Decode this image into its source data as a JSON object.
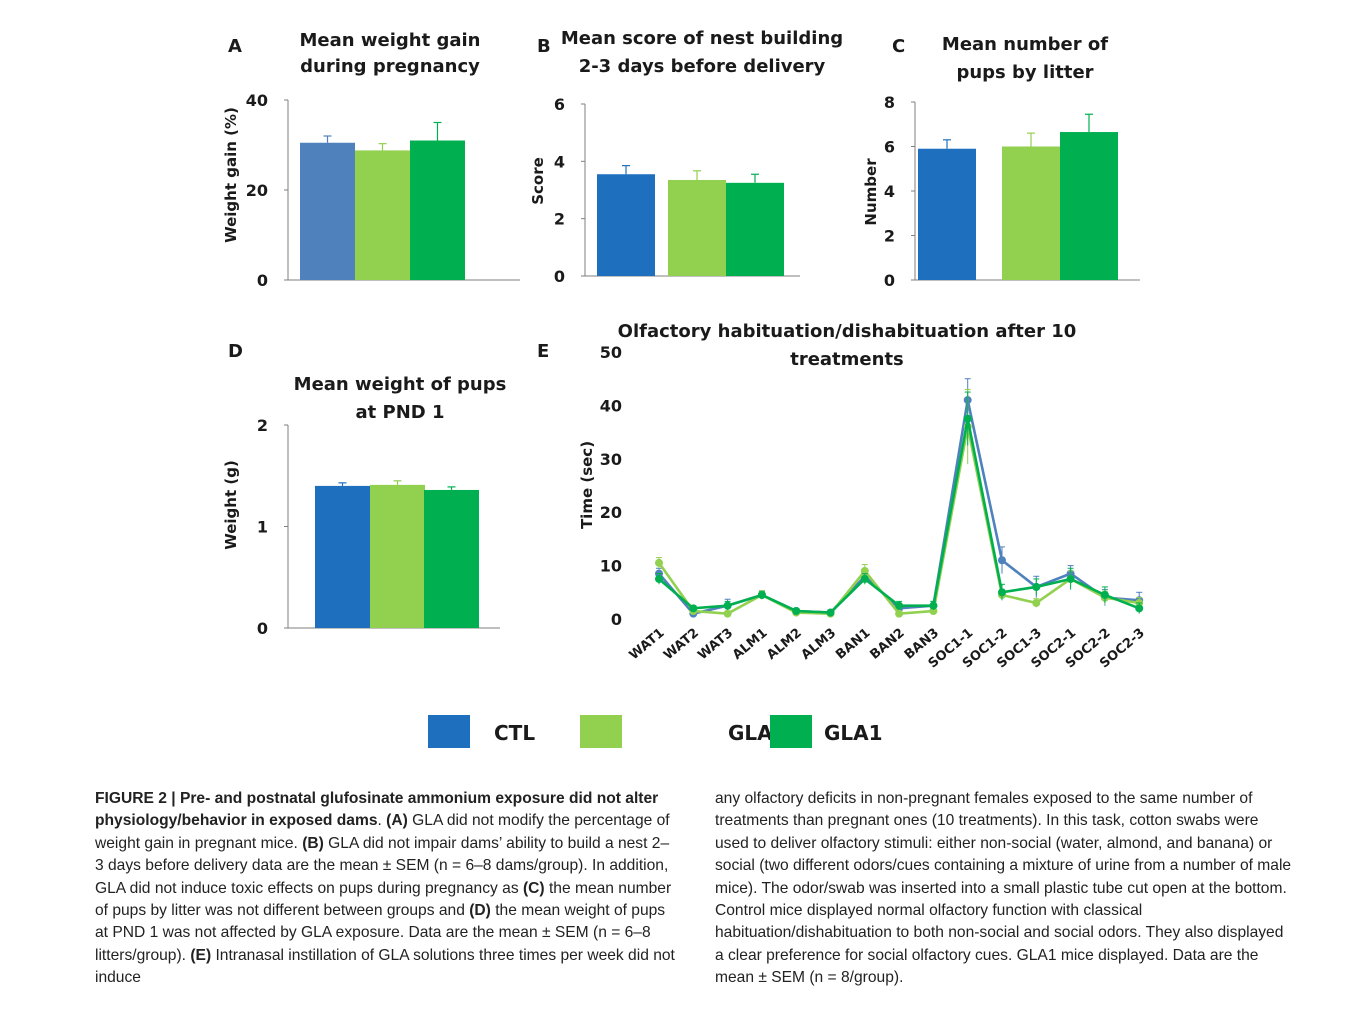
{
  "panels": {
    "A": {
      "letter": "A",
      "title_lines": [
        "Mean weight gain",
        "during pregnancy"
      ],
      "ylabel": "Weight gain (%)",
      "yticks": [
        "0",
        "20",
        "40"
      ]
    },
    "B": {
      "letter": "B",
      "title_lines": [
        "Mean score of nest building",
        "2-3 days before delivery"
      ],
      "ylabel": "Score",
      "yticks": [
        "0",
        "2",
        "4",
        "6"
      ]
    },
    "C": {
      "letter": "C",
      "title_lines": [
        "Mean number of",
        "pups by litter"
      ],
      "ylabel": "Number",
      "yticks": [
        "0",
        "2",
        "4",
        "6",
        "8"
      ]
    },
    "D": {
      "letter": "D",
      "title_lines": [
        "Mean weight of pups",
        "at PND 1"
      ],
      "ylabel": "Weight (g)",
      "yticks": [
        "0",
        "1",
        "2"
      ]
    },
    "E": {
      "letter": "E",
      "title_lines": [
        "Olfactory habituation/dishabituation after 10",
        "treatments"
      ],
      "ylabel": "Time (sec)",
      "yticks": [
        "0",
        "10",
        "20",
        "30",
        "40",
        "50"
      ]
    }
  },
  "legend": [
    {
      "name": "CTL",
      "color": "#1f6fbf"
    },
    {
      "name": "GLA0.2",
      "color": "#92d050"
    },
    {
      "name": "GLA1",
      "color": "#00b050"
    }
  ],
  "chart_data": [
    {
      "type": "bar",
      "panel": "A",
      "title": "Mean weight gain during pregnancy",
      "ylabel": "Weight gain (%)",
      "ylim": [
        0,
        40
      ],
      "categories": [
        "CTL",
        "GLA0.2",
        "GLA1"
      ],
      "values": [
        30.5,
        28.8,
        31.0
      ],
      "errors": [
        1.5,
        1.5,
        4.0
      ],
      "colors": [
        "#4f81bd",
        "#92d050",
        "#00b050"
      ]
    },
    {
      "type": "bar",
      "panel": "B",
      "title": "Mean score of nest building 2-3 days before delivery",
      "ylabel": "Score",
      "ylim": [
        0,
        6
      ],
      "categories": [
        "CTL",
        "GLA0.2",
        "GLA1"
      ],
      "values": [
        3.55,
        3.35,
        3.25
      ],
      "errors": [
        0.3,
        0.32,
        0.3
      ],
      "colors": [
        "#1f6fbf",
        "#92d050",
        "#00b050"
      ]
    },
    {
      "type": "bar",
      "panel": "C",
      "title": "Mean number of pups by litter",
      "ylabel": "Number",
      "ylim": [
        0,
        8
      ],
      "categories": [
        "CTL",
        "GLA0.2",
        "GLA1"
      ],
      "values": [
        5.9,
        6.0,
        6.65
      ],
      "errors": [
        0.4,
        0.6,
        0.8
      ],
      "colors": [
        "#1f6fbf",
        "#92d050",
        "#00b050"
      ]
    },
    {
      "type": "bar",
      "panel": "D",
      "title": "Mean weight of pups at PND 1",
      "ylabel": "Weight (g)",
      "ylim": [
        0,
        2
      ],
      "categories": [
        "CTL",
        "GLA0.2",
        "GLA1"
      ],
      "values": [
        1.4,
        1.41,
        1.36
      ],
      "errors": [
        0.03,
        0.04,
        0.03
      ],
      "colors": [
        "#1f6fbf",
        "#92d050",
        "#00b050"
      ]
    },
    {
      "type": "line",
      "panel": "E",
      "title": "Olfactory habituation/dishabituation after 10 treatments",
      "ylabel": "Time (sec)",
      "ylim": [
        0,
        50
      ],
      "x": [
        "WAT1",
        "WAT2",
        "WAT3",
        "ALM1",
        "ALM2",
        "ALM3",
        "BAN1",
        "BAN2",
        "BAN3",
        "SOC1-1",
        "SOC1-2",
        "SOC1-3",
        "SOC2-1",
        "SOC2-2",
        "SOC2-3"
      ],
      "series": [
        {
          "name": "CTL",
          "color": "#4f81bd",
          "values": [
            8.5,
            1.0,
            2.5,
            4.5,
            1.5,
            1.2,
            8.0,
            2.0,
            2.5,
            41.0,
            11.0,
            6.0,
            8.5,
            4.0,
            3.5
          ],
          "errors": [
            1.0,
            0.5,
            1.2,
            0.8,
            0.4,
            0.4,
            1.0,
            0.8,
            0.8,
            4.0,
            2.5,
            2.0,
            1.5,
            1.5,
            1.5
          ]
        },
        {
          "name": "GLA0.2",
          "color": "#92d050",
          "values": [
            10.5,
            1.5,
            1.0,
            4.5,
            1.2,
            1.0,
            9.0,
            1.0,
            1.5,
            36.0,
            4.5,
            3.0,
            7.5,
            4.0,
            3.0
          ],
          "errors": [
            1.0,
            0.4,
            0.5,
            0.8,
            0.3,
            0.3,
            1.2,
            0.5,
            0.5,
            7.0,
            1.0,
            0.8,
            1.5,
            1.2,
            1.0
          ]
        },
        {
          "name": "GLA1",
          "color": "#00b050",
          "values": [
            7.5,
            2.0,
            2.5,
            4.5,
            1.5,
            1.2,
            7.5,
            2.5,
            2.5,
            37.5,
            5.0,
            6.0,
            7.5,
            4.5,
            2.0
          ],
          "errors": [
            1.0,
            0.5,
            0.8,
            0.6,
            0.4,
            0.4,
            1.0,
            0.8,
            0.8,
            5.0,
            1.5,
            1.5,
            2.0,
            1.5,
            1.0
          ]
        }
      ]
    }
  ],
  "caption": {
    "left": [
      {
        "bold": true,
        "text": "FIGURE 2 | Pre- and postnatal glufosinate ammonium exposure did not alter physiology/behavior in exposed dams"
      },
      {
        "bold": false,
        "text": ". "
      },
      {
        "bold": true,
        "text": "(A)"
      },
      {
        "bold": false,
        "text": " GLA did not modify the percentage of weight gain in pregnant mice. "
      },
      {
        "bold": true,
        "text": "(B)"
      },
      {
        "bold": false,
        "text": " GLA did not impair dams’ ability to build a nest 2–3 days before delivery data are the mean ± SEM (n = 6–8 dams/group). In addition, GLA did not induce toxic effects on pups during pregnancy as "
      },
      {
        "bold": true,
        "text": "(C)"
      },
      {
        "bold": false,
        "text": " the mean number of pups by litter was not different between groups and "
      },
      {
        "bold": true,
        "text": "(D)"
      },
      {
        "bold": false,
        "text": " the mean weight of pups at PND 1 was not affected by GLA exposure. Data are the mean ± SEM (n = 6–8 litters/group). "
      },
      {
        "bold": true,
        "text": "(E)"
      },
      {
        "bold": false,
        "text": " Intranasal instillation of GLA solutions three times per week did not induce"
      }
    ],
    "right": "any olfactory deficits in non-pregnant females exposed to the same number of treatments than pregnant ones (10 treatments). In this task, cotton swabs were used to deliver olfactory stimuli: either non-social (water, almond, and banana) or social (two different odors/cues containing a mixture of urine from a number of male mice). The odor/swab was inserted into a small plastic tube cut open at the bottom. Control mice displayed normal olfactory function with classical habituation/dishabituation to both non-social and social odors. They also displayed a clear preference for social olfactory cues. GLA1 mice displayed. Data are the mean ± SEM (n = 8/group)."
  }
}
